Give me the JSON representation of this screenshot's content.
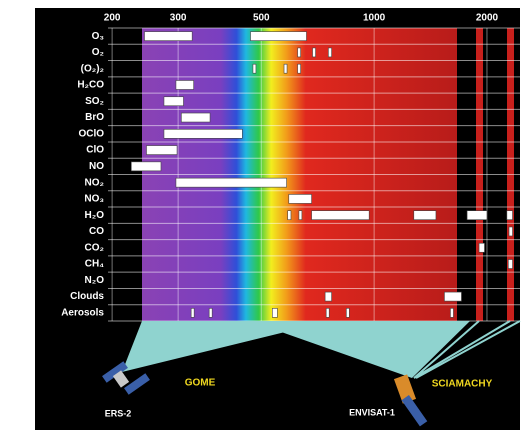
{
  "chart_data": {
    "type": "range",
    "x_scale": "log",
    "xlim": [
      195,
      2450
    ],
    "xticks": [
      200,
      300,
      500,
      1000,
      2000
    ],
    "grid": true,
    "color": "#ffffff",
    "categories": [
      "O₃",
      "O₂",
      "(O₂)₂",
      "H₂CO",
      "SO₂",
      "BrO",
      "OClO",
      "ClO",
      "NO",
      "NO₂",
      "NO₃",
      "H₂O",
      "CO",
      "CO₂",
      "CH₄",
      "N₂O",
      "Clouds",
      "Aerosols"
    ],
    "ranges": [
      [
        [
          244,
          327
        ],
        [
          468,
          660
        ]
      ],
      [
        [
          625,
          635
        ],
        [
          685,
          692
        ],
        [
          755,
          770
        ]
      ],
      [
        [
          475,
          480
        ],
        [
          575,
          580
        ],
        [
          625,
          632
        ]
      ],
      [
        [
          296,
          330
        ]
      ],
      [
        [
          275,
          310
        ]
      ],
      [
        [
          306,
          365
        ]
      ],
      [
        [
          275,
          445
        ]
      ],
      [
        [
          247,
          298
        ]
      ],
      [
        [
          225,
          270
        ]
      ],
      [
        [
          296,
          584
        ]
      ],
      [
        [
          592,
          681
        ]
      ],
      [
        [
          588,
          600
        ],
        [
          630,
          640
        ],
        [
          681,
          970
        ],
        [
          1276,
          1462
        ],
        [
          1770,
          2000
        ],
        [
          2260,
          2340
        ]
      ],
      [
        [
          2290,
          2340
        ]
      ],
      [
        [
          1905,
          1970
        ]
      ],
      [
        [
          2280,
          2340
        ]
      ],
      [],
      [
        [
          740,
          770
        ],
        [
          1540,
          1710
        ]
      ],
      [
        [
          325,
          330
        ],
        [
          363,
          368
        ],
        [
          535,
          552
        ],
        [
          745,
          752
        ],
        [
          843,
          850
        ],
        [
          1598,
          1608
        ]
      ]
    ],
    "annotations": [
      {
        "instrument": "GOME",
        "satellite": "ERS-2"
      },
      {
        "instrument": "SCIAMACHY",
        "satellite": "ENVISAT-1"
      }
    ]
  }
}
